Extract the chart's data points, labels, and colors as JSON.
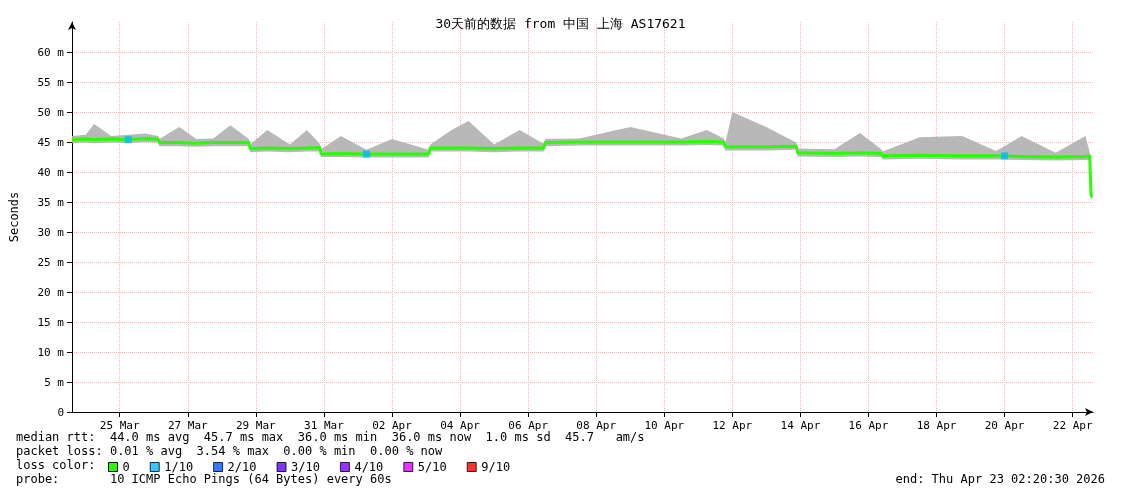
{
  "chart_data": {
    "type": "line",
    "title": "30天前的数据 from 中国 上海 AS17621",
    "ylabel": "Seconds",
    "legend_title": "loss color:",
    "xlim": [
      "2026-03-24T02:20",
      "2026-04-23T02:20"
    ],
    "xticks": [
      {
        "value": "2026-03-25T12:00",
        "label": "25 Mar"
      },
      {
        "value": "2026-03-27T12:00",
        "label": "27 Mar"
      },
      {
        "value": "2026-03-29T12:00",
        "label": "29 Mar"
      },
      {
        "value": "2026-03-31T12:00",
        "label": "31 Mar"
      },
      {
        "value": "2026-04-02T12:00",
        "label": "02 Apr"
      },
      {
        "value": "2026-04-04T12:00",
        "label": "04 Apr"
      },
      {
        "value": "2026-04-06T12:00",
        "label": "06 Apr"
      },
      {
        "value": "2026-04-08T12:00",
        "label": "08 Apr"
      },
      {
        "value": "2026-04-10T12:00",
        "label": "10 Apr"
      },
      {
        "value": "2026-04-12T12:00",
        "label": "12 Apr"
      },
      {
        "value": "2026-04-14T12:00",
        "label": "14 Apr"
      },
      {
        "value": "2026-04-16T12:00",
        "label": "16 Apr"
      },
      {
        "value": "2026-04-18T12:00",
        "label": "18 Apr"
      },
      {
        "value": "2026-04-20T12:00",
        "label": "20 Apr"
      },
      {
        "value": "2026-04-22T12:00",
        "label": "22 Apr"
      }
    ],
    "ylim": [
      0,
      65
    ],
    "yticks": [
      0,
      {
        "value": 5,
        "label": "5 m"
      },
      {
        "value": 10,
        "label": "10 m"
      },
      {
        "value": 15,
        "label": "15 m"
      },
      {
        "value": 20,
        "label": "20 m"
      },
      {
        "value": 25,
        "label": "25 m"
      },
      {
        "value": 30,
        "label": "30 m"
      },
      {
        "value": 35,
        "label": "35 m"
      },
      {
        "value": 40,
        "label": "40 m"
      },
      {
        "value": 45,
        "label": "45 m"
      },
      {
        "value": 50,
        "label": "50 m"
      },
      {
        "value": 55,
        "label": "55 m"
      },
      {
        "value": 60,
        "label": "60 m"
      }
    ],
    "grid": true,
    "legend": "bottom",
    "series": [
      {
        "name": "0",
        "color": "#26ff00",
        "x": [
          "2026-03-24T02:20",
          "2026-03-24T12:00",
          "2026-03-24T18:00",
          "2026-03-25T06:00",
          "2026-03-25T18:00",
          "2026-03-26T06:00",
          "2026-03-26T15:00",
          "2026-03-26T16:00",
          "2026-03-27T06:00",
          "2026-03-27T18:00",
          "2026-03-28T06:00",
          "2026-03-28T18:00",
          "2026-03-29T07:00",
          "2026-03-29T08:00",
          "2026-03-29T20:00",
          "2026-03-30T12:00",
          "2026-03-31T00:00",
          "2026-03-31T09:00",
          "2026-03-31T10:00",
          "2026-04-01T00:00",
          "2026-04-01T18:00",
          "2026-04-02T12:00",
          "2026-04-03T14:00",
          "2026-04-03T15:00",
          "2026-04-04T06:00",
          "2026-04-04T18:00",
          "2026-04-05T12:00",
          "2026-04-06T06:00",
          "2026-04-06T23:00",
          "2026-04-07T00:00",
          "2026-04-08T00:00",
          "2026-04-09T12:00",
          "2026-04-11T00:00",
          "2026-04-11T18:00",
          "2026-04-12T06:00",
          "2026-04-12T07:00",
          "2026-04-12T12:00",
          "2026-04-13T12:00",
          "2026-04-14T09:00",
          "2026-04-14T10:00",
          "2026-04-15T12:00",
          "2026-04-16T06:00",
          "2026-04-16T21:00",
          "2026-04-16T22:00",
          "2026-04-18T00:00",
          "2026-04-19T06:00",
          "2026-04-20T06:00",
          "2026-04-21T00:00",
          "2026-04-22T00:00",
          "2026-04-22T21:00",
          "2026-04-23T00:00",
          "2026-04-23T01:00",
          "2026-04-23T02:00"
        ],
        "values": [
          45.4,
          45.5,
          45.4,
          45.5,
          45.4,
          45.6,
          45.5,
          44.9,
          44.9,
          44.8,
          44.9,
          44.9,
          44.9,
          43.9,
          44.0,
          43.9,
          44.0,
          44.1,
          43.0,
          43.1,
          43.0,
          43.0,
          43.0,
          44.0,
          44.0,
          44.0,
          43.9,
          44.0,
          44.0,
          44.9,
          45.0,
          45.0,
          45.0,
          45.1,
          45.0,
          44.2,
          44.2,
          44.2,
          44.3,
          43.2,
          43.1,
          43.2,
          43.1,
          42.7,
          42.8,
          42.7,
          42.7,
          42.6,
          42.5,
          42.6,
          42.7,
          36.0,
          36.0
        ],
        "lower": [
          44.8,
          44.9,
          44.8,
          44.9,
          44.8,
          45.0,
          44.9,
          44.3,
          44.3,
          44.2,
          44.3,
          44.3,
          44.3,
          43.3,
          43.4,
          43.3,
          43.4,
          43.4,
          42.5,
          42.5,
          42.4,
          42.4,
          42.4,
          43.4,
          43.4,
          43.4,
          43.3,
          43.4,
          43.4,
          44.3,
          44.4,
          44.4,
          44.4,
          44.5,
          44.4,
          43.6,
          43.6,
          43.6,
          43.7,
          42.6,
          42.5,
          42.6,
          42.5,
          42.1,
          42.2,
          42.1,
          42.1,
          42.0,
          41.9,
          42.0,
          42.0,
          35.5,
          35.6
        ],
        "upper": [
          46.0,
          46.2,
          48.0,
          46.0,
          46.2,
          46.4,
          46.0,
          45.5,
          47.5,
          45.5,
          45.6,
          47.8,
          45.5,
          44.6,
          47.0,
          44.6,
          47.0,
          44.7,
          43.8,
          46.0,
          43.7,
          45.5,
          43.7,
          44.6,
          47.0,
          48.5,
          44.6,
          47.0,
          44.7,
          45.5,
          45.6,
          47.5,
          45.6,
          47.0,
          45.6,
          44.8,
          50.0,
          47.5,
          44.9,
          43.9,
          43.8,
          46.5,
          43.8,
          43.4,
          45.8,
          46.0,
          43.5,
          46.0,
          43.2,
          46.0,
          43.3,
          36.5,
          36.4
        ]
      },
      {
        "name": "1/10",
        "color": "#00b8ff",
        "type": "scatter",
        "marker": "square",
        "x": [
          "2026-03-25T18:00",
          "2026-04-01T18:00",
          "2026-04-20T12:00"
        ],
        "values": [
          45.4,
          43.0,
          42.7
        ]
      },
      {
        "name": "2/10",
        "color": "#0059ff",
        "type": "scatter"
      },
      {
        "name": "3/10",
        "color": "#5e00ff",
        "type": "scatter"
      },
      {
        "name": "4/10",
        "color": "#7e00ff",
        "type": "scatter"
      },
      {
        "name": "5/10",
        "color": "#dd00ff",
        "type": "scatter"
      },
      {
        "name": "9/10",
        "color": "#ff0000",
        "type": "scatter"
      }
    ],
    "annotations": [
      "median rtt:  44.0 ms avg  45.7 ms max  36.0 ms min  36.0 ms now  1.0 ms sd  45.7   am/s",
      "packet loss: 0.01 % avg  3.54 % max  0.00 % min  0.00 % now",
      "probe:       10 ICMP Echo Pings (64 Bytes) every 60s",
      "end: Thu Apr 23 02:20:30 2026"
    ]
  }
}
